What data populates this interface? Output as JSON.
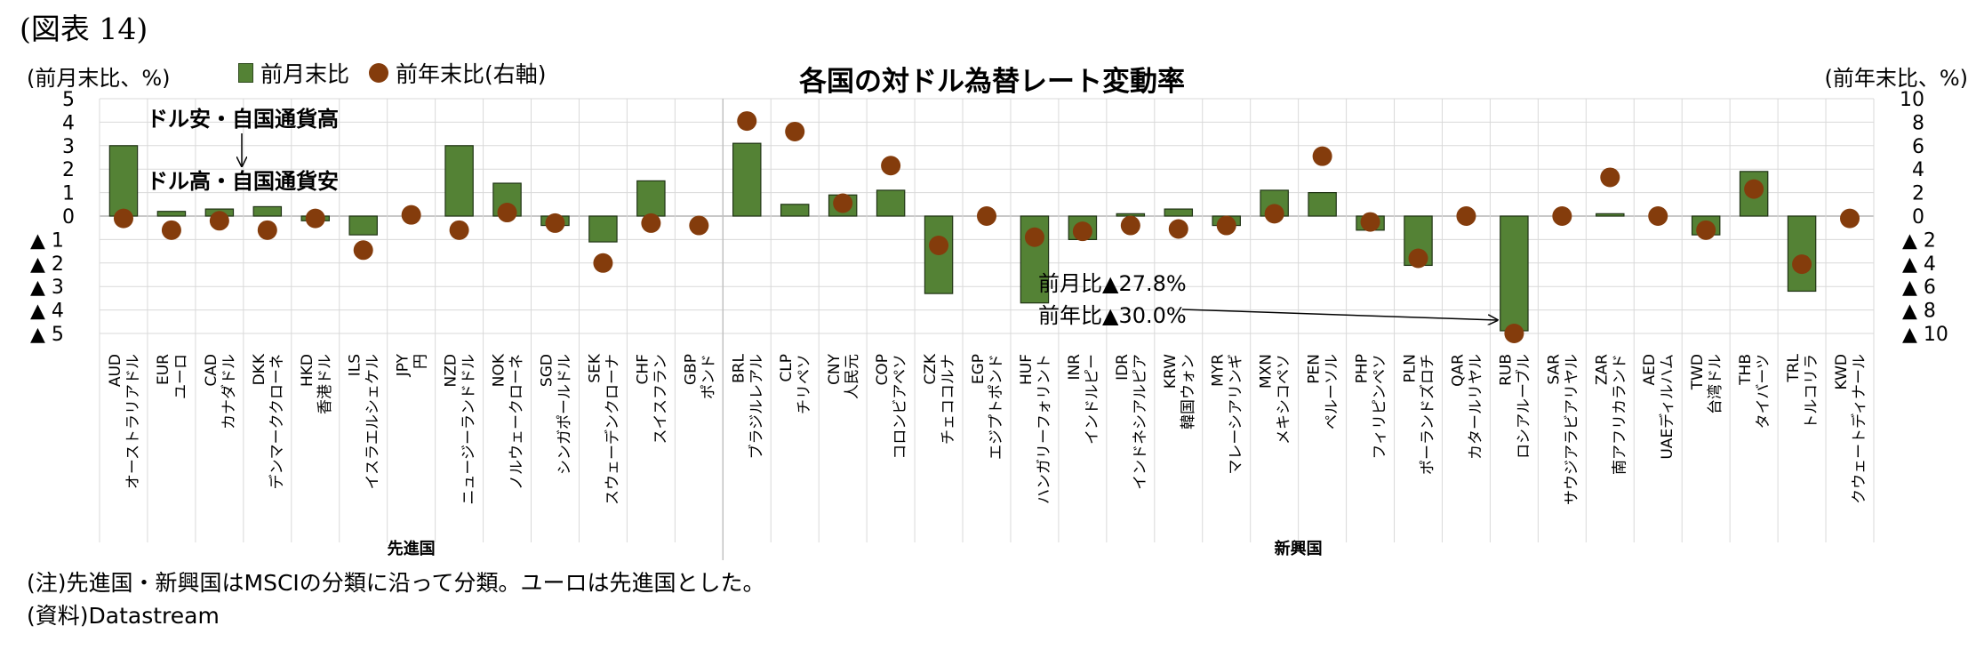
{
  "figure_label": "(図表 14)",
  "notes": {
    "note": "(注)先進国・新興国はMSCIの分類に沿って分類。ユーロは先進国とした。",
    "source": "(資料)Datastream"
  },
  "chart_data": {
    "type": "bar",
    "title": "各国の対ドル為替レート変動率",
    "ylabel_left": "(前月末比、%)",
    "ylabel_right": "(前年末比、%)",
    "ylim_left": [
      -5,
      5
    ],
    "ylim_right": [
      -10,
      10
    ],
    "yticks_left": [
      "5",
      "4",
      "3",
      "2",
      "1",
      "0",
      "▲ 1",
      "▲ 2",
      "▲ 3",
      "▲ 4",
      "▲ 5"
    ],
    "yticks_right": [
      "10",
      "8",
      "6",
      "4",
      "2",
      "0",
      "▲ 2",
      "▲ 4",
      "▲ 6",
      "▲ 8",
      "▲ 10"
    ],
    "legend": {
      "position": "top-left",
      "bar_label": "前月末比",
      "dot_label": "前年末比(右軸)"
    },
    "colors": {
      "bar": "#548235",
      "dot": "#843c0c",
      "grid": "#d9d9d9"
    },
    "codes": [
      "AUD",
      "EUR",
      "CAD",
      "DKK",
      "HKD",
      "ILS",
      "JPY",
      "NZD",
      "NOK",
      "SGD",
      "SEK",
      "CHF",
      "GBP",
      "BRL",
      "CLP",
      "CNY",
      "COP",
      "CZK",
      "EGP",
      "HUF",
      "INR",
      "IDR",
      "KRW",
      "MYR",
      "MXN",
      "PEN",
      "PHP",
      "PLN",
      "QAR",
      "RUB",
      "SAR",
      "ZAR",
      "AED",
      "TWD",
      "THB",
      "TRL",
      "KWD"
    ],
    "names": [
      "オーストラリアドル",
      "ユーロ",
      "カナダドル",
      "デンマーククローネ",
      "香港ドル",
      "イスラエルシェケル",
      "円",
      "ニュージーランドドル",
      "ノルウェークローネ",
      "シンガポールドル",
      "スウェーデンクローナ",
      "スイスフラン",
      "ポンド",
      "ブラジルレアル",
      "チリペソ",
      "人民元",
      "コロンビアペソ",
      "チェココルナ",
      "エジプトポンド",
      "ハンガリーフォリント",
      "インドルピー",
      "インドネシアルピア",
      "韓国ウォン",
      "マレーシアリンギ",
      "メキシコペソ",
      "ペルーソル",
      "フィリピンペソ",
      "ポーランドズロチ",
      "カタールリヤル",
      "ロシアルーブル",
      "サウジアラビアリヤル",
      "南アフリカランド",
      "UAEディルハム",
      "台湾ドル",
      "タイバーツ",
      "トルコリラ",
      "クウェートディナール"
    ],
    "series": [
      {
        "name": "前月末比",
        "axis": "left",
        "values": [
          3.0,
          0.2,
          0.3,
          0.4,
          -0.2,
          -0.8,
          0.0,
          3.0,
          1.4,
          -0.4,
          -1.1,
          1.5,
          0.0,
          3.1,
          0.5,
          0.9,
          1.1,
          -3.3,
          0.0,
          -3.7,
          -1.0,
          0.1,
          0.3,
          -0.4,
          1.1,
          1.0,
          -0.6,
          -2.1,
          0.0,
          -27.8,
          0.0,
          0.1,
          0.0,
          -0.8,
          1.9,
          -3.2,
          0.0
        ]
      },
      {
        "name": "前年末比(右軸)",
        "axis": "right",
        "values": [
          -0.2,
          -1.2,
          -0.4,
          -1.2,
          -0.2,
          -2.9,
          0.1,
          -1.2,
          0.3,
          -0.6,
          -4.0,
          -0.6,
          -0.8,
          8.1,
          7.2,
          1.1,
          4.3,
          -2.5,
          0.0,
          -1.8,
          -1.3,
          -0.8,
          -1.1,
          -0.8,
          0.2,
          5.1,
          -0.5,
          -3.6,
          0.0,
          -30.0,
          0.0,
          3.3,
          0.0,
          -1.2,
          2.3,
          -4.1,
          -0.2
        ]
      }
    ],
    "groups": [
      {
        "name": "先進国",
        "span": [
          0,
          12
        ]
      },
      {
        "name": "新興国",
        "span": [
          13,
          36
        ]
      }
    ],
    "annotations": {
      "up_label": "ドル安・自国通貨高",
      "down_label": "ドル高・自国通貨安",
      "rub_month": "前月比▲27.8%",
      "rub_year": "前年比▲30.0%"
    }
  }
}
